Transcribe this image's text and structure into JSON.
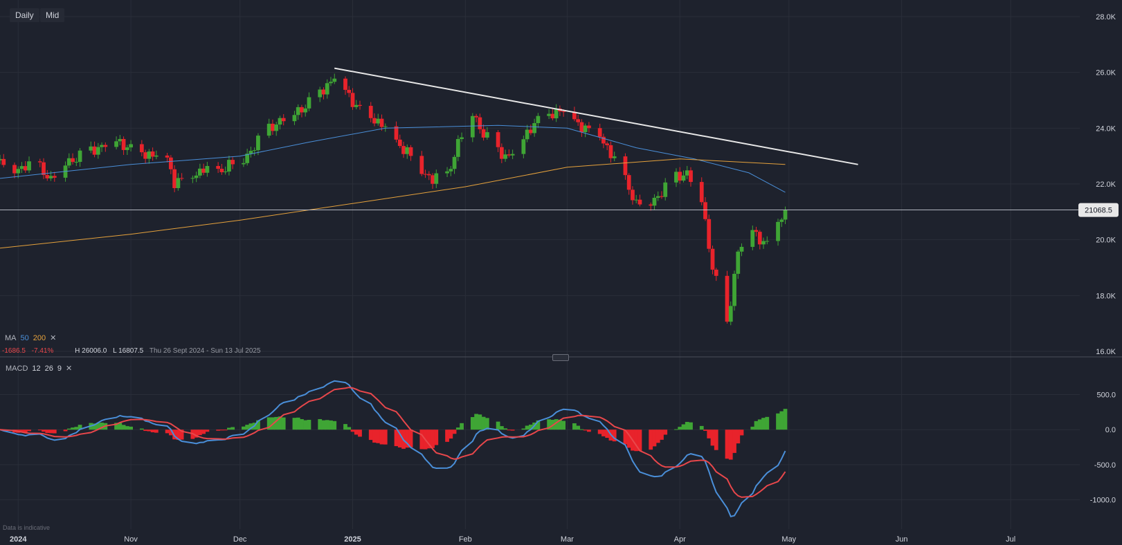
{
  "toolbar": {
    "interval": "Daily",
    "price_type": "Mid"
  },
  "ma_legend": {
    "label": "MA",
    "p1": "50",
    "p2": "200",
    "close": "✕",
    "colors": {
      "ma50": "#4a8fd9",
      "ma200": "#e6a23c"
    }
  },
  "stats": {
    "change": "-1686.5",
    "change_pct": "-7.41%",
    "high": "H 26006.0",
    "low": "L 16807.5",
    "range": "Thu 26 Sept 2024 - Sun 13 Jul 2025"
  },
  "macd_legend": {
    "label": "MACD",
    "fast": "12",
    "slow": "26",
    "signal": "9",
    "close": "✕"
  },
  "footer_note": "Data is indicative",
  "last_price": "21068.5",
  "colors": {
    "bg": "#1e222d",
    "up": "#3fa535",
    "down": "#e8232b",
    "trend": "#e8e8e8",
    "macd": "#4a8fd9",
    "signal": "#e8474b"
  },
  "chart_data": [
    {
      "type": "candlestick",
      "x_ticks": [
        {
          "label": "2024",
          "date": "2024-10-01",
          "bold": true
        },
        {
          "label": "Nov",
          "date": "2024-11-01"
        },
        {
          "label": "Dec",
          "date": "2024-12-01"
        },
        {
          "label": "2025",
          "date": "2025-01-01",
          "bold": true
        },
        {
          "label": "Feb",
          "date": "2025-02-01"
        },
        {
          "label": "Mar",
          "date": "2025-03-01"
        },
        {
          "label": "Apr",
          "date": "2025-04-01"
        },
        {
          "label": "May",
          "date": "2025-05-01"
        },
        {
          "label": "Jun",
          "date": "2025-06-01"
        },
        {
          "label": "Jul",
          "date": "2025-07-01"
        }
      ],
      "y_ticks": [
        {
          "label": "28.0K",
          "value": 28000
        },
        {
          "label": "26.0K",
          "value": 26000
        },
        {
          "label": "24.0K",
          "value": 24000
        },
        {
          "label": "22.0K",
          "value": 22000
        },
        {
          "label": "20.0K",
          "value": 20000
        },
        {
          "label": "18.0K",
          "value": 18000
        },
        {
          "label": "16.0K",
          "value": 16000
        }
      ],
      "ylim": [
        16000,
        28000
      ],
      "candles_close": [
        [
          "2024-09-26",
          22800
        ],
        [
          "2024-09-30",
          22500
        ],
        [
          "2024-10-03",
          22700
        ],
        [
          "2024-10-07",
          22600
        ],
        [
          "2024-10-10",
          22200
        ],
        [
          "2024-10-14",
          22800
        ],
        [
          "2024-10-17",
          22950
        ],
        [
          "2024-10-21",
          23200
        ],
        [
          "2024-10-24",
          23400
        ],
        [
          "2024-10-28",
          23600
        ],
        [
          "2024-10-31",
          23350
        ],
        [
          "2024-11-04",
          23100
        ],
        [
          "2024-11-07",
          23100
        ],
        [
          "2024-11-11",
          22900
        ],
        [
          "2024-11-13",
          22100
        ],
        [
          "2024-11-18",
          22300
        ],
        [
          "2024-11-21",
          22600
        ],
        [
          "2024-11-25",
          22400
        ],
        [
          "2024-11-28",
          22750
        ],
        [
          "2024-12-02",
          22900
        ],
        [
          "2024-12-05",
          23400
        ],
        [
          "2024-12-09",
          24000
        ],
        [
          "2024-12-12",
          24300
        ],
        [
          "2024-12-16",
          24600
        ],
        [
          "2024-12-19",
          24800
        ],
        [
          "2024-12-23",
          25300
        ],
        [
          "2024-12-27",
          25850
        ],
        [
          "2024-12-30",
          25400
        ],
        [
          "2025-01-02",
          24800
        ],
        [
          "2025-01-06",
          24400
        ],
        [
          "2025-01-09",
          24200
        ],
        [
          "2025-01-13",
          23500
        ],
        [
          "2025-01-16",
          23200
        ],
        [
          "2025-01-20",
          22500
        ],
        [
          "2025-01-23",
          22200
        ],
        [
          "2025-01-27",
          22300
        ],
        [
          "2025-01-30",
          23500
        ],
        [
          "2025-02-03",
          24600
        ],
        [
          "2025-02-06",
          23800
        ],
        [
          "2025-02-10",
          23200
        ],
        [
          "2025-02-13",
          23000
        ],
        [
          "2025-02-17",
          23700
        ],
        [
          "2025-02-20",
          24200
        ],
        [
          "2025-02-24",
          24500
        ],
        [
          "2025-02-27",
          24700
        ],
        [
          "2025-03-03",
          24300
        ],
        [
          "2025-03-06",
          24000
        ],
        [
          "2025-03-10",
          23800
        ],
        [
          "2025-03-13",
          23100
        ],
        [
          "2025-03-17",
          22200
        ],
        [
          "2025-03-20",
          21300
        ],
        [
          "2025-03-24",
          21400
        ],
        [
          "2025-03-27",
          21700
        ],
        [
          "2025-03-31",
          22300
        ],
        [
          "2025-04-03",
          22400
        ],
        [
          "2025-04-07",
          21500
        ],
        [
          "2025-04-10",
          19000
        ],
        [
          "2025-04-14",
          17000
        ],
        [
          "2025-04-17",
          19600
        ],
        [
          "2025-04-21",
          20400
        ],
        [
          "2025-04-24",
          19900
        ],
        [
          "2025-04-27",
          19700
        ],
        [
          "2025-04-28",
          20700
        ],
        [
          "2025-04-29",
          20900
        ],
        [
          "2025-04-30",
          21068.5
        ]
      ],
      "ma50_approx": [
        [
          "2024-09-26",
          22200
        ],
        [
          "2024-11-01",
          22700
        ],
        [
          "2024-12-01",
          23000
        ],
        [
          "2024-12-20",
          23500
        ],
        [
          "2025-01-10",
          24000
        ],
        [
          "2025-02-10",
          24100
        ],
        [
          "2025-03-01",
          24000
        ],
        [
          "2025-03-20",
          23300
        ],
        [
          "2025-04-05",
          22900
        ],
        [
          "2025-04-20",
          22400
        ],
        [
          "2025-04-30",
          21700
        ]
      ],
      "ma200_approx": [
        [
          "2024-09-26",
          19700
        ],
        [
          "2024-11-01",
          20200
        ],
        [
          "2024-12-01",
          20700
        ],
        [
          "2025-01-01",
          21300
        ],
        [
          "2025-02-01",
          21900
        ],
        [
          "2025-03-01",
          22600
        ],
        [
          "2025-04-01",
          22900
        ],
        [
          "2025-04-30",
          22700
        ]
      ],
      "trendline": [
        [
          "2024-12-27",
          26150
        ],
        [
          "2025-05-20",
          22700
        ]
      ],
      "horizontal_line": 21068.5
    },
    {
      "type": "macd",
      "y_ticks": [
        {
          "label": "500.0",
          "value": 500
        },
        {
          "label": "0.0",
          "value": 0
        },
        {
          "label": "-500.0",
          "value": -500
        },
        {
          "label": "-1000.0",
          "value": -1000
        }
      ],
      "ylim": [
        -1250,
        850
      ]
    }
  ]
}
